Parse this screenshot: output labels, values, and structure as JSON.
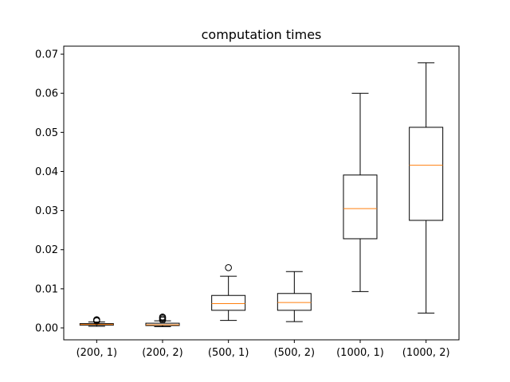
{
  "chart_data": {
    "type": "boxplot",
    "title": "computation times",
    "xlabel": "",
    "ylabel": "",
    "ylim": [
      -0.00305,
      0.07205
    ],
    "yticks": [
      0.0,
      0.01,
      0.02,
      0.03,
      0.04,
      0.05,
      0.06,
      0.07
    ],
    "ytick_labels": [
      "0.00",
      "0.01",
      "0.02",
      "0.03",
      "0.04",
      "0.05",
      "0.06",
      "0.07"
    ],
    "grid": false,
    "colors": {
      "box": "#000000",
      "median": "#ff7f0e",
      "axes": "#000000"
    },
    "categories": [
      "(200, 1)",
      "(200, 2)",
      "(500, 1)",
      "(500, 2)",
      "(1000, 1)",
      "(1000, 2)"
    ],
    "boxes": [
      {
        "whisker_low": 0.0004,
        "q1": 0.0007,
        "median": 0.0009,
        "q3": 0.0011,
        "whisker_high": 0.0015,
        "outliers": [
          0.0018,
          0.002,
          0.0021
        ]
      },
      {
        "whisker_low": 0.0003,
        "q1": 0.0006,
        "median": 0.0008,
        "q3": 0.0012,
        "whisker_high": 0.0018,
        "outliers": [
          0.002,
          0.0023,
          0.0026,
          0.0028
        ]
      },
      {
        "whisker_low": 0.0019,
        "q1": 0.0045,
        "median": 0.0062,
        "q3": 0.0083,
        "whisker_high": 0.0132,
        "outliers": [
          0.0154
        ]
      },
      {
        "whisker_low": 0.0016,
        "q1": 0.0045,
        "median": 0.0065,
        "q3": 0.0088,
        "whisker_high": 0.0144,
        "outliers": []
      },
      {
        "whisker_low": 0.0093,
        "q1": 0.0228,
        "median": 0.0305,
        "q3": 0.0391,
        "whisker_high": 0.06,
        "outliers": []
      },
      {
        "whisker_low": 0.0038,
        "q1": 0.0275,
        "median": 0.0416,
        "q3": 0.0513,
        "whisker_high": 0.0678,
        "outliers": []
      }
    ]
  }
}
